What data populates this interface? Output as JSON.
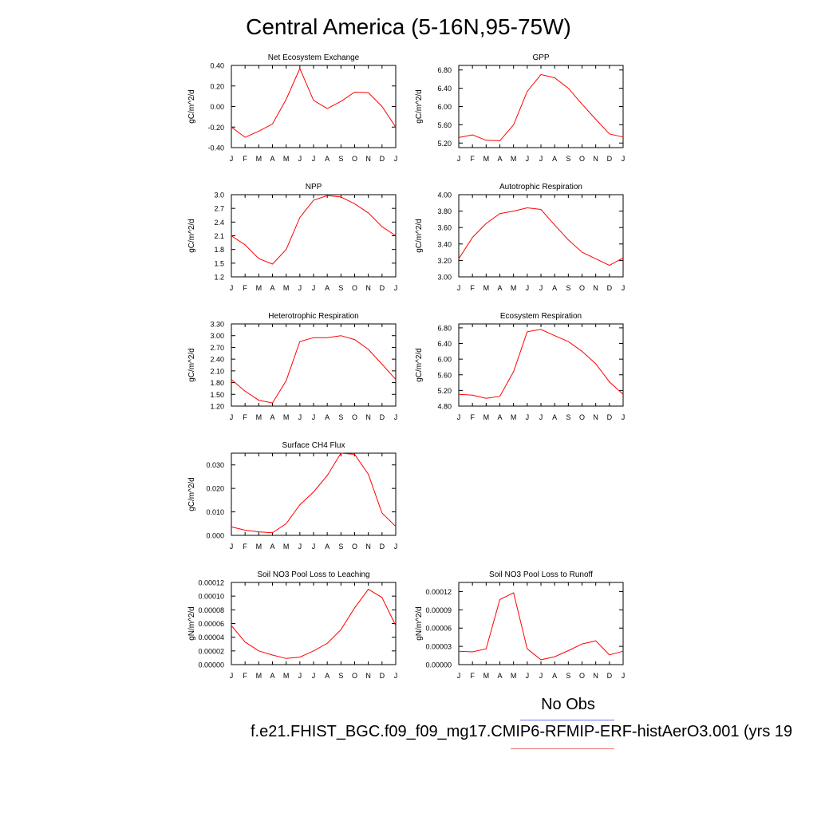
{
  "title": "Central America (5-16N,95-75W)",
  "legend": {
    "obs_label": "No Obs",
    "case_label": "f.e21.FHIST_BGC.f09_f09_mg17.CMIP6-RFMIP-ERF-histAerO3.001 (yrs 19",
    "obs_color": "#6f6ff0",
    "model_color": "#f07070"
  },
  "line_color": "#ff0000",
  "chart_data": [
    {
      "type": "line",
      "title": "Net Ecosystem Exchange",
      "ylabel": "gC/m^2/d",
      "x": [
        "J",
        "F",
        "M",
        "A",
        "M",
        "J",
        "J",
        "A",
        "S",
        "O",
        "N",
        "D",
        "J"
      ],
      "yticks": [
        "0.40",
        "0.20",
        "0.00",
        "-0.20",
        "-0.40"
      ],
      "ylim": [
        -0.4,
        0.4
      ],
      "values": [
        -0.2,
        -0.3,
        -0.24,
        -0.17,
        0.07,
        0.37,
        0.06,
        -0.02,
        0.05,
        0.14,
        0.135,
        0.0,
        -0.2
      ]
    },
    {
      "type": "line",
      "title": "GPP",
      "ylabel": "gC/m^2/d",
      "x": [
        "J",
        "F",
        "M",
        "A",
        "M",
        "J",
        "J",
        "A",
        "S",
        "O",
        "N",
        "D",
        "J"
      ],
      "yticks": [
        "6.80",
        "6.40",
        "6.00",
        "5.60",
        "5.20"
      ],
      "ylim": [
        5.1,
        6.9
      ],
      "values": [
        5.32,
        5.38,
        5.26,
        5.25,
        5.6,
        6.33,
        6.7,
        6.63,
        6.4,
        6.05,
        5.72,
        5.4,
        5.33
      ]
    },
    {
      "type": "line",
      "title": "NPP",
      "ylabel": "gC/m^2/d",
      "x": [
        "J",
        "F",
        "M",
        "A",
        "M",
        "J",
        "J",
        "A",
        "S",
        "O",
        "N",
        "D",
        "J"
      ],
      "yticks": [
        "3.0",
        "2.7",
        "2.4",
        "2.1",
        "1.8",
        "1.5",
        "1.2"
      ],
      "ylim": [
        1.2,
        3.0
      ],
      "values": [
        2.1,
        1.9,
        1.6,
        1.48,
        1.8,
        2.5,
        2.88,
        2.98,
        2.95,
        2.8,
        2.6,
        2.3,
        2.1
      ]
    },
    {
      "type": "line",
      "title": "Autotrophic Respiration",
      "ylabel": "gC/m^2/d",
      "x": [
        "J",
        "F",
        "M",
        "A",
        "M",
        "J",
        "J",
        "A",
        "S",
        "O",
        "N",
        "D",
        "J"
      ],
      "yticks": [
        "4.00",
        "3.80",
        "3.60",
        "3.40",
        "3.20",
        "3.00"
      ],
      "ylim": [
        3.0,
        4.0
      ],
      "values": [
        3.22,
        3.48,
        3.65,
        3.77,
        3.8,
        3.84,
        3.82,
        3.63,
        3.45,
        3.3,
        3.22,
        3.14,
        3.23
      ]
    },
    {
      "type": "line",
      "title": "Heterotrophic Respiration",
      "ylabel": "gC/m^2/d",
      "x": [
        "J",
        "F",
        "M",
        "A",
        "M",
        "J",
        "J",
        "A",
        "S",
        "O",
        "N",
        "D",
        "J"
      ],
      "yticks": [
        "3.30",
        "3.00",
        "2.70",
        "2.40",
        "2.10",
        "1.80",
        "1.50",
        "1.20"
      ],
      "ylim": [
        1.2,
        3.3
      ],
      "values": [
        1.88,
        1.58,
        1.35,
        1.28,
        1.85,
        2.85,
        2.95,
        2.95,
        3.0,
        2.9,
        2.65,
        2.27,
        1.88
      ]
    },
    {
      "type": "line",
      "title": "Ecosystem Respiration",
      "ylabel": "gC/m^2/d",
      "x": [
        "J",
        "F",
        "M",
        "A",
        "M",
        "J",
        "J",
        "A",
        "S",
        "O",
        "N",
        "D",
        "J"
      ],
      "yticks": [
        "6.80",
        "6.40",
        "6.00",
        "5.60",
        "5.20",
        "4.80"
      ],
      "ylim": [
        4.8,
        6.9
      ],
      "values": [
        5.1,
        5.08,
        5.0,
        5.05,
        5.68,
        6.7,
        6.76,
        6.6,
        6.45,
        6.2,
        5.88,
        5.42,
        5.1
      ]
    },
    {
      "type": "line",
      "title": "Surface CH4 Flux",
      "ylabel": "gC/m^2/d",
      "x": [
        "J",
        "F",
        "M",
        "A",
        "M",
        "J",
        "J",
        "A",
        "S",
        "O",
        "N",
        "D",
        "J"
      ],
      "yticks": [
        "0.030",
        "0.020",
        "0.010",
        "0.000"
      ],
      "ylim": [
        0.0,
        0.035
      ],
      "values": [
        0.0036,
        0.0022,
        0.0015,
        0.0011,
        0.005,
        0.013,
        0.0185,
        0.0255,
        0.035,
        0.0345,
        0.026,
        0.0095,
        0.0038
      ]
    },
    {
      "type": "line",
      "title": "Soil NO3 Pool Loss to Leaching",
      "ylabel": "gN/m^2/d",
      "x": [
        "J",
        "F",
        "M",
        "A",
        "M",
        "J",
        "J",
        "A",
        "S",
        "O",
        "N",
        "D",
        "J"
      ],
      "yticks": [
        "0.00012",
        "0.00010",
        "0.00008",
        "0.00006",
        "0.00004",
        "0.00002",
        "0.00000"
      ],
      "ylim": [
        0.0,
        0.00012
      ],
      "values": [
        5.7e-05,
        3.3e-05,
        2e-05,
        1.4e-05,
        9e-06,
        1.1e-05,
        2e-05,
        3.1e-05,
        5.1e-05,
        8.3e-05,
        0.00011,
        9.8e-05,
        5.7e-05
      ]
    },
    {
      "type": "line",
      "title": "Soil NO3 Pool Loss to Runoff",
      "ylabel": "gN/m^2/d",
      "x": [
        "J",
        "F",
        "M",
        "A",
        "M",
        "J",
        "J",
        "A",
        "S",
        "O",
        "N",
        "D",
        "J"
      ],
      "yticks": [
        "0.00012",
        "0.00009",
        "0.00006",
        "0.00003",
        "0.00000"
      ],
      "ylim": [
        0.0,
        0.000135
      ],
      "values": [
        2.2e-05,
        2.1e-05,
        2.6e-05,
        0.000107,
        0.000118,
        2.6e-05,
        8e-06,
        1.3e-05,
        2.3e-05,
        3.4e-05,
        3.9e-05,
        1.6e-05,
        2.2e-05
      ]
    }
  ]
}
